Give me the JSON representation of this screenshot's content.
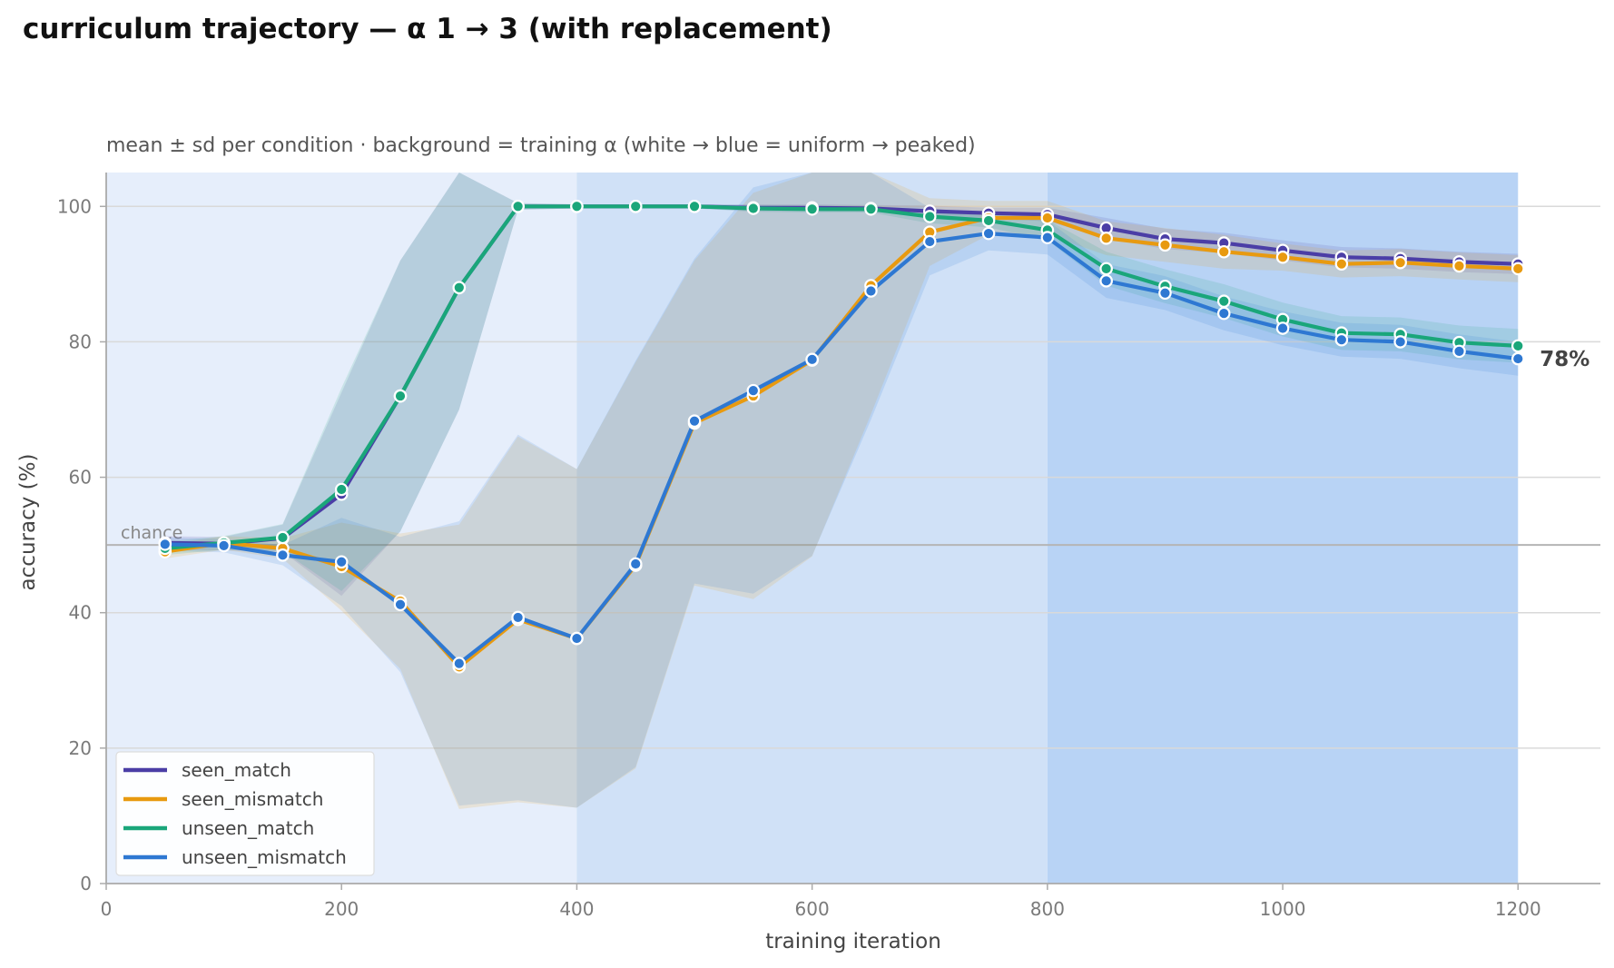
{
  "chart_data": {
    "type": "line",
    "title": "curriculum trajectory — α 1 → 3 (with replacement)",
    "subtitle": "mean ± sd per condition · background = training α (white → blue = uniform → peaked)",
    "xlabel": "training iteration",
    "ylabel": "accuracy (%)",
    "xlim": [
      0,
      1270
    ],
    "ylim": [
      0,
      105
    ],
    "x_ticks": [
      0,
      200,
      400,
      600,
      800,
      1000,
      1200
    ],
    "y_ticks": [
      0,
      20,
      40,
      60,
      80,
      100
    ],
    "grid": "horizontal",
    "legend_position": "bottom-left",
    "chance": {
      "label": "chance",
      "value": 50
    },
    "end_label": {
      "text": "78%",
      "series": "unseen_mismatch"
    },
    "background_bands": [
      {
        "x0": 0,
        "x1": 400,
        "color": "#e6eefb"
      },
      {
        "x0": 400,
        "x1": 800,
        "color": "#d0e1f7"
      },
      {
        "x0": 800,
        "x1": 1200,
        "color": "#b8d3f5"
      }
    ],
    "x": [
      50,
      100,
      150,
      200,
      250,
      300,
      350,
      400,
      450,
      500,
      550,
      600,
      650,
      700,
      750,
      800,
      850,
      900,
      950,
      1000,
      1050,
      1100,
      1150,
      1200
    ],
    "series": [
      {
        "name": "seen_match",
        "color": "#4b3ea6",
        "values": [
          50.3,
          50.2,
          51.0,
          57.5,
          72.0,
          88.0,
          100,
          100,
          100,
          100,
          99.8,
          99.8,
          99.7,
          99.3,
          99.0,
          98.8,
          96.8,
          95.2,
          94.6,
          93.5,
          92.5,
          92.3,
          91.8,
          91.5
        ],
        "sd": [
          1.0,
          1.0,
          2.0,
          15.0,
          20.0,
          18.0,
          0.5,
          0.3,
          0.3,
          0.3,
          0.5,
          0.5,
          0.5,
          0.8,
          0.8,
          1.0,
          1.5,
          1.5,
          1.5,
          1.5,
          1.5,
          1.5,
          1.5,
          1.5
        ]
      },
      {
        "name": "seen_mismatch",
        "color": "#e89a10",
        "values": [
          49.0,
          50.3,
          49.5,
          46.8,
          41.7,
          32.0,
          39.0,
          36.2,
          47.0,
          68.0,
          72.0,
          77.3,
          88.3,
          96.2,
          98.3,
          98.3,
          95.3,
          94.3,
          93.3,
          92.5,
          91.5,
          91.7,
          91.2,
          90.8
        ],
        "sd": [
          1.0,
          1.0,
          1.5,
          6.5,
          10.0,
          21.0,
          27.0,
          25.0,
          30.0,
          24.0,
          30.0,
          29.0,
          19.0,
          5.0,
          2.5,
          2.5,
          2.5,
          2.5,
          2.5,
          2.0,
          2.0,
          2.0,
          2.0,
          2.0
        ]
      },
      {
        "name": "unseen_match",
        "color": "#1aa67a",
        "values": [
          49.5,
          50.3,
          51.1,
          58.2,
          72.0,
          88.0,
          100,
          100,
          100,
          100,
          99.7,
          99.6,
          99.6,
          98.5,
          97.9,
          96.5,
          90.8,
          88.2,
          86.0,
          83.3,
          81.3,
          81.1,
          79.9,
          79.4
        ],
        "sd": [
          1.0,
          1.0,
          2.0,
          15.0,
          20.0,
          18.0,
          0.5,
          0.3,
          0.3,
          0.3,
          0.5,
          0.5,
          0.5,
          1.0,
          1.0,
          1.5,
          2.5,
          2.5,
          2.5,
          2.5,
          2.5,
          2.5,
          2.5,
          2.5
        ]
      },
      {
        "name": "unseen_mismatch",
        "color": "#2e78d2",
        "values": [
          50.1,
          49.9,
          48.5,
          47.5,
          41.2,
          32.5,
          39.3,
          36.2,
          47.2,
          68.3,
          72.8,
          77.4,
          87.5,
          94.8,
          96.0,
          95.4,
          89.0,
          87.2,
          84.2,
          82.0,
          80.3,
          80.0,
          78.6,
          77.5
        ],
        "sd": [
          1.0,
          1.0,
          1.5,
          6.5,
          10.0,
          21.0,
          27.0,
          25.0,
          30.0,
          24.0,
          30.0,
          29.0,
          19.0,
          5.0,
          2.5,
          2.5,
          2.5,
          2.5,
          2.5,
          2.5,
          2.5,
          2.5,
          2.5,
          2.5
        ]
      }
    ]
  }
}
